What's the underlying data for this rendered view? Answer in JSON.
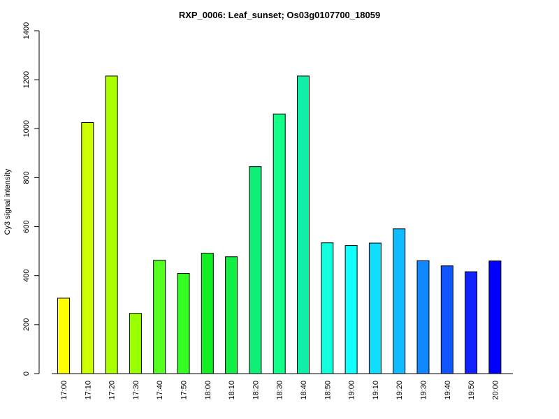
{
  "chart_data": {
    "type": "bar",
    "title": "RXP_0006: Leaf_sunset; Os03g0107700_18059",
    "xlabel": "",
    "ylabel": "Cy3 signal intensity",
    "ylim": [
      0,
      1400
    ],
    "yticks": [
      "0",
      "200",
      "400",
      "600",
      "800",
      "1000",
      "1200",
      "1400"
    ],
    "categories": [
      "17:00",
      "17:10",
      "17:20",
      "17:30",
      "17:40",
      "17:50",
      "18:00",
      "18:10",
      "18:20",
      "18:30",
      "18:40",
      "18:50",
      "19:00",
      "19:10",
      "19:20",
      "19:30",
      "19:40",
      "19:50",
      "20:00"
    ],
    "values": [
      308,
      1025,
      1215,
      246,
      463,
      409,
      492,
      477,
      845,
      1060,
      1215,
      534,
      523,
      533,
      591,
      461,
      440,
      416,
      460
    ],
    "colors": [
      "#ffff00",
      "#ccff00",
      "#aaff00",
      "#99ff00",
      "#55ff22",
      "#33ff22",
      "#11ee22",
      "#11ee44",
      "#11ee77",
      "#11ff88",
      "#11eeaa",
      "#11ffdd",
      "#11ffff",
      "#11ddff",
      "#11bbff",
      "#1188ff",
      "#1155ff",
      "#1122ff",
      "#0000ff"
    ],
    "grid": false,
    "legend": "none"
  }
}
